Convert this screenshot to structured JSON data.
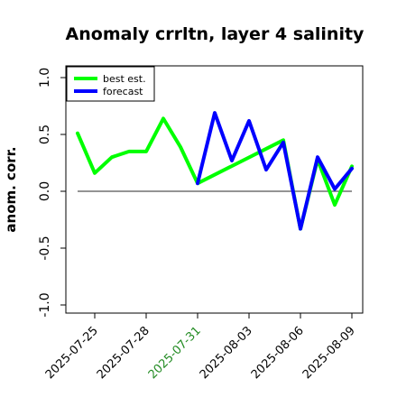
{
  "chart_data": {
    "type": "line",
    "title": "Anomaly crrltn, layer 4 salinity",
    "ylabel": "anom. corr.",
    "xlabel": "",
    "ylim": [
      -1.0,
      1.0
    ],
    "y_ticks": [
      "-1.0",
      "-0.5",
      "0.0",
      "0.5",
      "1.0"
    ],
    "y_tick_values": [
      -1.0,
      -0.5,
      0.0,
      0.5,
      1.0
    ],
    "x_tick_labels": [
      {
        "label": "2025-07-25",
        "color": "#000000"
      },
      {
        "label": "2025-07-28",
        "color": "#000000"
      },
      {
        "label": "2025-07-31",
        "color": "#228B22"
      },
      {
        "label": "2025-08-03",
        "color": "#000000"
      },
      {
        "label": "2025-08-06",
        "color": "#000000"
      },
      {
        "label": "2025-08-09",
        "color": "#000000"
      }
    ],
    "x_dates": [
      "2025-07-24",
      "2025-07-25",
      "2025-07-26",
      "2025-07-27",
      "2025-07-28",
      "2025-07-29",
      "2025-07-30",
      "2025-07-31",
      "2025-08-01",
      "2025-08-02",
      "2025-08-03",
      "2025-08-04",
      "2025-08-05",
      "2025-08-06",
      "2025-08-07",
      "2025-08-08",
      "2025-08-09"
    ],
    "series": [
      {
        "name": "best est.",
        "color": "#00ff00",
        "values": [
          0.51,
          0.16,
          0.3,
          0.35,
          0.35,
          0.64,
          0.39,
          0.07,
          null,
          null,
          null,
          null,
          0.45,
          -0.33,
          0.28,
          -0.12,
          0.22
        ]
      },
      {
        "name": "forecast",
        "color": "#0000ff",
        "values": [
          null,
          null,
          null,
          null,
          null,
          null,
          null,
          0.07,
          0.69,
          0.27,
          0.62,
          0.19,
          0.43,
          -0.33,
          0.3,
          0.02,
          0.2
        ]
      }
    ],
    "reference_line": 0.0,
    "legend_position": "top-left",
    "grid": false
  }
}
